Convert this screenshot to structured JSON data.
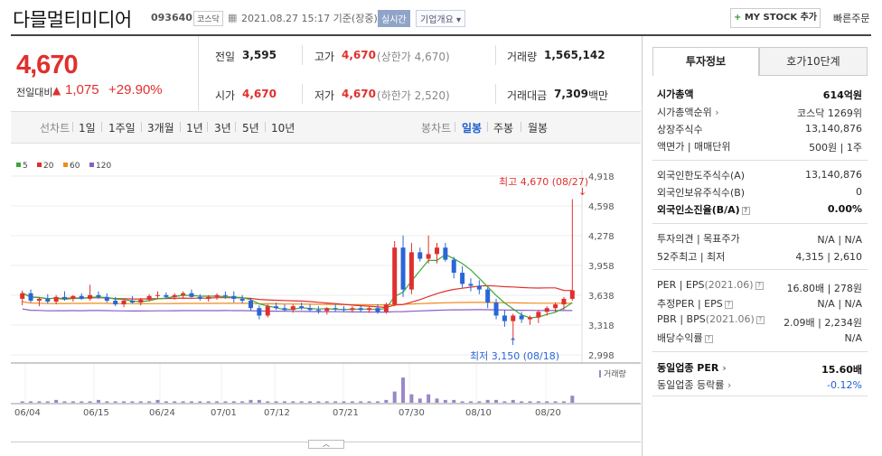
{
  "header": {
    "company_name": "다믈멀티미디어",
    "code": "093640",
    "market": "코스닥",
    "datetime": "2021.08.27 15:17 기준(장중)",
    "live_label": "실시간",
    "corp_info_label": "기업개요",
    "mystock_plus": "+",
    "mystock_label": "MY STOCK 추가",
    "quick_order_label": "빠른주문"
  },
  "price": {
    "current": "4,670",
    "change_label": "전일대비",
    "change_arrow": "▲",
    "change_value": "1,075",
    "change_pct": "+29.90%"
  },
  "quote": {
    "prev_label": "전일",
    "prev_value": "3,595",
    "open_label": "시가",
    "open_value": "4,670",
    "high_label": "고가",
    "high_value": "4,670",
    "high_sub": "(상한가 4,670)",
    "low_label": "저가",
    "low_value": "4,670",
    "low_sub": "(하한가 2,520)",
    "volume_label": "거래량",
    "volume_value": "1,565,142",
    "amount_label": "거래대금",
    "amount_value": "7,309",
    "amount_unit": "백만"
  },
  "period_bar": {
    "line_label": "선차트",
    "periods": [
      "1일",
      "1주일",
      "3개월",
      "1년",
      "3년",
      "5년",
      "10년"
    ],
    "candle_label": "봉차트",
    "candles": [
      "일봉",
      "주봉",
      "월봉"
    ],
    "selected_candle": "일봉"
  },
  "chart_data": {
    "type": "candlestick",
    "legend": [
      "5",
      "20",
      "60",
      "120"
    ],
    "legend_colors": [
      "#3aa83a",
      "#e0302e",
      "#f08a1c",
      "#8a5cc9"
    ],
    "x_ticks": [
      "06/04",
      "06/15",
      "06/24",
      "07/01",
      "07/12",
      "07/21",
      "07/30",
      "08/10",
      "08/20"
    ],
    "y_ticks": [
      4918,
      4598,
      4278,
      3958,
      3638,
      3318,
      2998
    ],
    "ylim": [
      2998,
      4918
    ],
    "high_annotation": "최고 4,670 (08/27)",
    "low_annotation": "최저 3,150 (08/18)",
    "volume_label": "거래량",
    "up_color": "#e0302e",
    "down_color": "#2a66d6",
    "volume_color": "#9a86c8"
  },
  "panel": {
    "tab_active": "투자정보",
    "tab_other": "호가10단계",
    "market_cap_label": "시가총액",
    "market_cap_value": "614억원",
    "cap_rank_label": "시가총액순위",
    "cap_rank_value": "코스닥 1269위",
    "listed_shares_label": "상장주식수",
    "listed_shares_value": "13,140,876",
    "par_label": "액면가 | 매매단위",
    "par_value": "500원 | 1주",
    "foreign_limit_label": "외국인한도주식수(A)",
    "foreign_limit_value": "13,140,876",
    "foreign_hold_label": "외국인보유주식수(B)",
    "foreign_hold_value": "0",
    "foreign_ratio_label": "외국인소진율(B/A)",
    "foreign_ratio_value": "0.00%",
    "opinion_label": "투자의견 | 목표주가",
    "opinion_value": "N/A | N/A",
    "week52_label": "52주최고 | 최저",
    "week52_value": "4,315 | 2,610",
    "per_label": "PER | EPS",
    "per_date": "(2021.06)",
    "per_value": "16.80배 | 278원",
    "est_per_label": "추정PER | EPS",
    "est_per_value": "N/A | N/A",
    "pbr_label": "PBR | BPS",
    "pbr_date": "(2021.06)",
    "pbr_value": "2.09배 | 2,234원",
    "div_label": "배당수익률",
    "div_value": "N/A",
    "sector_per_label": "동일업종 PER",
    "sector_per_value": "15.60배",
    "sector_rate_label": "동일업종 등락률",
    "sector_rate_value": "-0.12%"
  }
}
